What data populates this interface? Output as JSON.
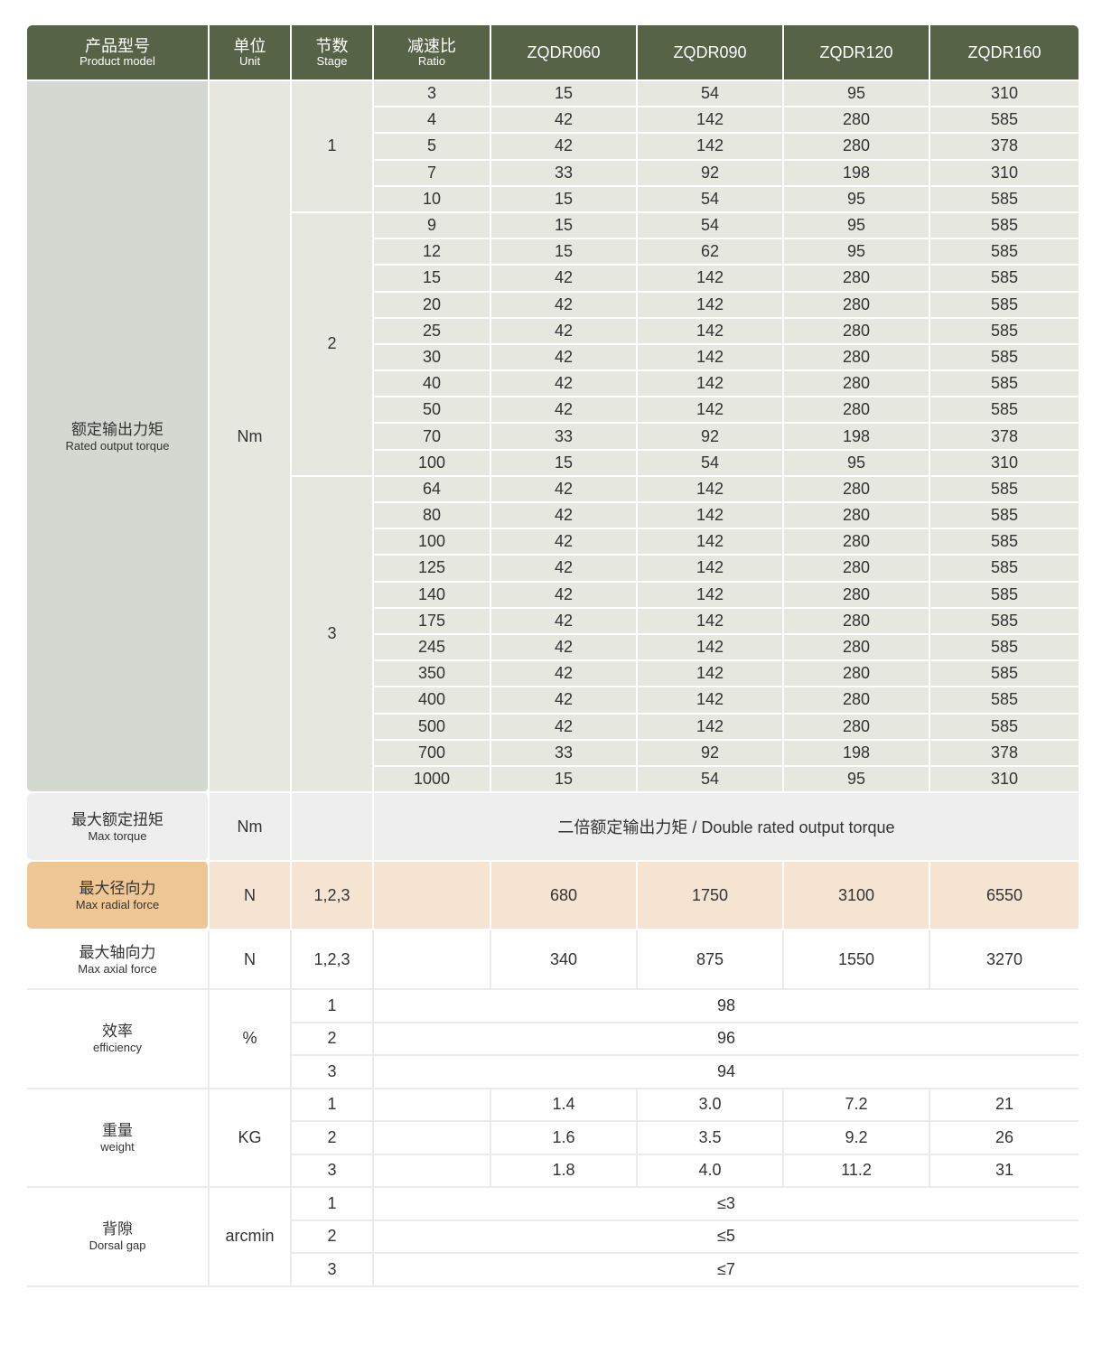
{
  "header": {
    "product_model": {
      "cn": "产品型号",
      "en": "Product model"
    },
    "unit": {
      "cn": "单位",
      "en": "Unit"
    },
    "stage": {
      "cn": "节数",
      "en": "Stage"
    },
    "ratio": {
      "cn": "减速比",
      "en": "Ratio"
    },
    "models": [
      "ZQDR060",
      "ZQDR090",
      "ZQDR120",
      "ZQDR160"
    ]
  },
  "rated_torque": {
    "cn": "额定输出力矩",
    "en": "Rated output torque",
    "unit": "Nm",
    "stages": [
      {
        "stage": "1",
        "rows": [
          [
            "3",
            "15",
            "54",
            "95",
            "310"
          ],
          [
            "4",
            "42",
            "142",
            "280",
            "585"
          ],
          [
            "5",
            "42",
            "142",
            "280",
            "378"
          ],
          [
            "7",
            "33",
            "92",
            "198",
            "310"
          ],
          [
            "10",
            "15",
            "54",
            "95",
            "585"
          ]
        ]
      },
      {
        "stage": "2",
        "rows": [
          [
            "9",
            "15",
            "54",
            "95",
            "585"
          ],
          [
            "12",
            "15",
            "62",
            "95",
            "585"
          ],
          [
            "15",
            "42",
            "142",
            "280",
            "585"
          ],
          [
            "20",
            "42",
            "142",
            "280",
            "585"
          ],
          [
            "25",
            "42",
            "142",
            "280",
            "585"
          ],
          [
            "30",
            "42",
            "142",
            "280",
            "585"
          ],
          [
            "40",
            "42",
            "142",
            "280",
            "585"
          ],
          [
            "50",
            "42",
            "142",
            "280",
            "585"
          ],
          [
            "70",
            "33",
            "92",
            "198",
            "378"
          ],
          [
            "100",
            "15",
            "54",
            "95",
            "310"
          ]
        ]
      },
      {
        "stage": "3",
        "rows": [
          [
            "64",
            "42",
            "142",
            "280",
            "585"
          ],
          [
            "80",
            "42",
            "142",
            "280",
            "585"
          ],
          [
            "100",
            "42",
            "142",
            "280",
            "585"
          ],
          [
            "125",
            "42",
            "142",
            "280",
            "585"
          ],
          [
            "140",
            "42",
            "142",
            "280",
            "585"
          ],
          [
            "175",
            "42",
            "142",
            "280",
            "585"
          ],
          [
            "245",
            "42",
            "142",
            "280",
            "585"
          ],
          [
            "350",
            "42",
            "142",
            "280",
            "585"
          ],
          [
            "400",
            "42",
            "142",
            "280",
            "585"
          ],
          [
            "500",
            "42",
            "142",
            "280",
            "585"
          ],
          [
            "700",
            "33",
            "92",
            "198",
            "378"
          ],
          [
            "1000",
            "15",
            "54",
            "95",
            "310"
          ]
        ]
      }
    ]
  },
  "max_torque": {
    "cn": "最大额定扭矩",
    "en": "Max torque",
    "unit": "Nm",
    "value": "二倍额定输出力矩 / Double rated output torque"
  },
  "radial": {
    "cn": "最大径向力",
    "en": "Max radial force",
    "unit": "N",
    "stage": "1,2,3",
    "values": [
      "680",
      "1750",
      "3100",
      "6550"
    ]
  },
  "axial": {
    "cn": "最大轴向力",
    "en": "Max axial force",
    "unit": "N",
    "stage": "1,2,3",
    "values": [
      "340",
      "875",
      "1550",
      "3270"
    ]
  },
  "efficiency": {
    "cn": "效率",
    "en": "efficiency",
    "unit": "%",
    "rows": [
      {
        "stage": "1",
        "value": "98"
      },
      {
        "stage": "2",
        "value": "96"
      },
      {
        "stage": "3",
        "value": "94"
      }
    ]
  },
  "weight": {
    "cn": "重量",
    "en": "weight",
    "unit": "KG",
    "rows": [
      {
        "stage": "1",
        "values": [
          "1.4",
          "3.0",
          "7.2",
          "21"
        ]
      },
      {
        "stage": "2",
        "values": [
          "1.6",
          "3.5",
          "9.2",
          "26"
        ]
      },
      {
        "stage": "3",
        "values": [
          "1.8",
          "4.0",
          "11.2",
          "31"
        ]
      }
    ]
  },
  "backlash": {
    "cn": "背隙",
    "en": "Dorsal gap",
    "unit": "arcmin",
    "rows": [
      {
        "stage": "1",
        "value": "≤3"
      },
      {
        "stage": "2",
        "value": "≤5"
      },
      {
        "stage": "3",
        "value": "≤7"
      }
    ]
  },
  "colors": {
    "header": "#566347",
    "rated_label": "#d3d9d0",
    "rated_cell": "#e6e7df",
    "max_torque": "#eeeeee",
    "radial_label": "#efc794",
    "radial_cell": "#f6e4d2"
  }
}
